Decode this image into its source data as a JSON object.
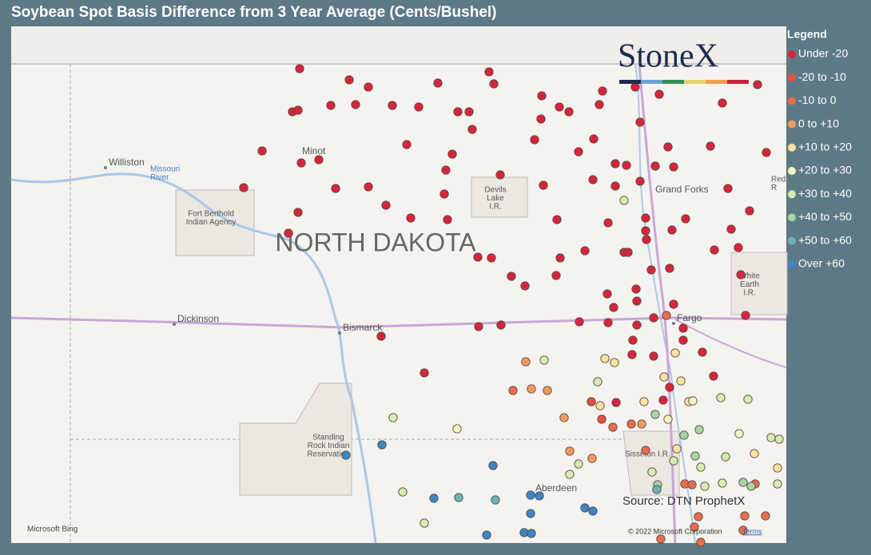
{
  "header": {
    "title": "Soybean Spot Basis Difference from 3 Year Average (Cents/Bushel)"
  },
  "legend": {
    "title": "Legend",
    "items": [
      {
        "label": "Under -20",
        "color": "#d8243a"
      },
      {
        "label": "-20 to -10",
        "color": "#e4513a"
      },
      {
        "label": "-10 to 0",
        "color": "#ec6b4c"
      },
      {
        "label": "0 to +10",
        "color": "#f29a5e"
      },
      {
        "label": "+10 to +20",
        "color": "#f9e3a0"
      },
      {
        "label": "+20 to +30",
        "color": "#f3f6c4"
      },
      {
        "label": "+30 to +40",
        "color": "#d5ecb2"
      },
      {
        "label": "+40 to +50",
        "color": "#a6d6a4"
      },
      {
        "label": "+50 to +60",
        "color": "#6ab5b2"
      },
      {
        "label": "Over +60",
        "color": "#3c85c6"
      }
    ]
  },
  "map": {
    "labels": [
      [
        "Williston"
      ],
      [
        "Missouri",
        "River"
      ],
      [
        "Minot"
      ],
      [
        "Fort Berthold",
        "Indian Agency"
      ],
      [
        "NORTH DAKOTA"
      ],
      [
        "Devils",
        "Lake",
        "I.R."
      ],
      [
        "Grand Forks"
      ],
      [
        "Red",
        "R"
      ],
      [
        "White",
        "Earth",
        "I.R."
      ],
      [
        "Dickinson"
      ],
      [
        "Bismarck"
      ],
      [
        "Fargo"
      ],
      [
        "Standing",
        "Rock Indian",
        "Reservation"
      ],
      [
        "Sisseton I.R."
      ],
      [
        "Aberdeen"
      ]
    ],
    "logo": "StoneX",
    "source": "Source: DTN ProphetX",
    "bing": "Microsoft Bing",
    "attribution": "© 2022 Microsoft Corporation",
    "terms": "Terms"
  }
}
